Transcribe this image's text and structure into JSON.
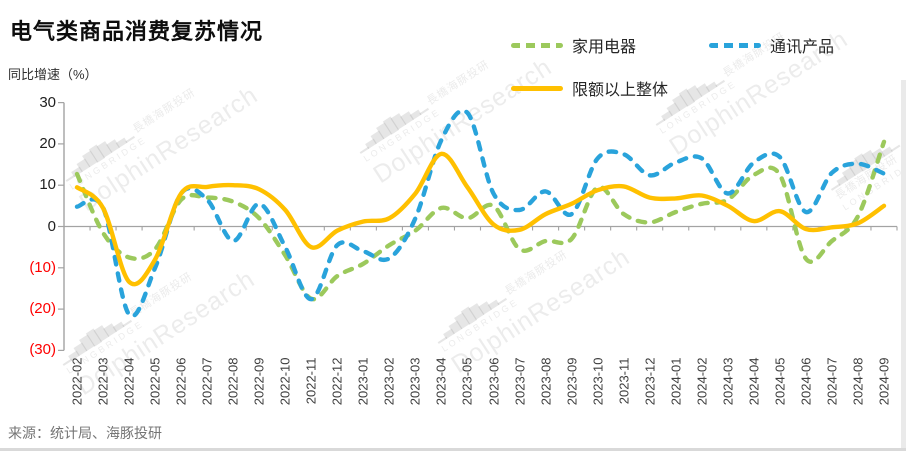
{
  "header": {
    "title": "电气类商品消费复苏情况"
  },
  "axis": {
    "unit_label": "同比增速（%）",
    "y_tick_labels": [
      "30",
      "20",
      "10",
      "0",
      "(10)",
      "(20)",
      "(30)"
    ],
    "y_tick_values": [
      30,
      20,
      10,
      0,
      -10,
      -20,
      -30
    ]
  },
  "legend": [
    {
      "label": "家用电器",
      "color": "#9CC95C",
      "style": "dashed"
    },
    {
      "label": "通讯产品",
      "color": "#29A3DB",
      "style": "dashed"
    },
    {
      "label": "限额以上整体",
      "color": "#FFC000",
      "style": "solid"
    }
  ],
  "chart_data": {
    "type": "line",
    "title": "电气类商品消费复苏情况",
    "ylabel": "同比增速（%）",
    "ylim": [
      -30,
      30
    ],
    "grid": false,
    "legend_position": "top",
    "smooth": true,
    "categories": [
      "2022-02",
      "2022-03",
      "2022-04",
      "2022-05",
      "2022-06",
      "2022-07",
      "2022-08",
      "2022-09",
      "2022-10",
      "2022-11",
      "2022-12",
      "2023-01",
      "2023-02",
      "2023-03",
      "2023-04",
      "2023-05",
      "2023-06",
      "2023-07",
      "2023-08",
      "2023-09",
      "2023-10",
      "2023-11",
      "2023-12",
      "2024-01",
      "2024-02",
      "2024-03",
      "2024-04",
      "2024-05",
      "2024-06",
      "2024-07",
      "2024-08",
      "2024-09"
    ],
    "series": [
      {
        "name": "家用电器",
        "color": "#9CC95C",
        "line_style": "dashed",
        "values": [
          12.7,
          -1.5,
          -7.5,
          -5.5,
          6.5,
          7,
          6,
          2,
          -7,
          -17.5,
          -12,
          -9,
          -4.5,
          -1,
          4.5,
          2,
          5,
          -5.5,
          -3.5,
          -3,
          9.5,
          3,
          1,
          3.5,
          5.5,
          6.5,
          12.5,
          12.5,
          -7.8,
          -3.5,
          2.5,
          20.5
        ]
      },
      {
        "name": "通讯产品",
        "color": "#29A3DB",
        "line_style": "dashed",
        "values": [
          4.8,
          4.6,
          -21.3,
          -10,
          8,
          6.5,
          -3.5,
          5.5,
          -5,
          -17.6,
          -4.5,
          -6,
          -7.7,
          2,
          21,
          27.5,
          8,
          4,
          8.5,
          3,
          16.5,
          17.5,
          12.4,
          15.5,
          16.5,
          8,
          15.5,
          16.8,
          3.5,
          13,
          15.2,
          12.8
        ]
      },
      {
        "name": "限额以上整体",
        "color": "#FFC000",
        "line_style": "solid",
        "values": [
          9.5,
          4.5,
          -13.4,
          -8,
          8,
          9.6,
          10,
          9,
          4,
          -5,
          -1,
          1.2,
          2,
          8,
          17.6,
          9.5,
          0.5,
          -0.8,
          3,
          5.5,
          8.8,
          9.7,
          7,
          6.8,
          7.5,
          5,
          1.3,
          3.7,
          -0.6,
          -0.2,
          0.8,
          5
        ]
      }
    ]
  },
  "source": {
    "text": "来源：统计局、海豚投研"
  },
  "watermark": {
    "cjk": "長橋海豚投研",
    "en": "LONGBRIDGE",
    "brand": "DolphinResearch",
    "bars": "▁▃▅▇█▇▅▃▁"
  }
}
